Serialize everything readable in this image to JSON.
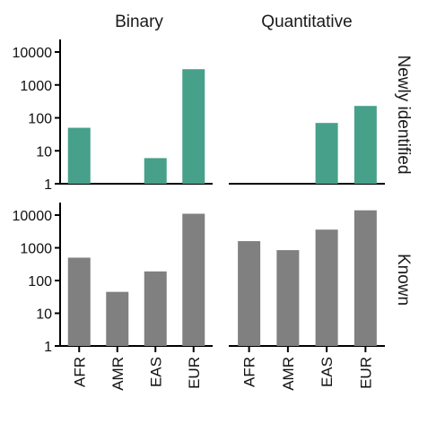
{
  "chart_data": {
    "type": "bar",
    "y_scale": "log10",
    "ylim": [
      1,
      10000
    ],
    "y_ticks": [
      "1",
      "10",
      "100",
      "1000",
      "10000"
    ],
    "categories": [
      "AFR",
      "AMR",
      "EAS",
      "EUR"
    ],
    "column_facets": [
      "Binary",
      "Quantitative"
    ],
    "row_facets": [
      "Newly identified",
      "Known"
    ],
    "colors": {
      "Newly identified": "#47a08a",
      "Known": "#808080"
    },
    "panels": [
      {
        "column": "Binary",
        "row": "Newly identified",
        "values": [
          50,
          1,
          6,
          3000
        ]
      },
      {
        "column": "Quantitative",
        "row": "Newly identified",
        "values": [
          1,
          1,
          70,
          230
        ]
      },
      {
        "column": "Binary",
        "row": "Known",
        "values": [
          500,
          45,
          190,
          11000
        ]
      },
      {
        "column": "Quantitative",
        "row": "Known",
        "values": [
          1600,
          850,
          3600,
          14000
        ]
      }
    ]
  }
}
